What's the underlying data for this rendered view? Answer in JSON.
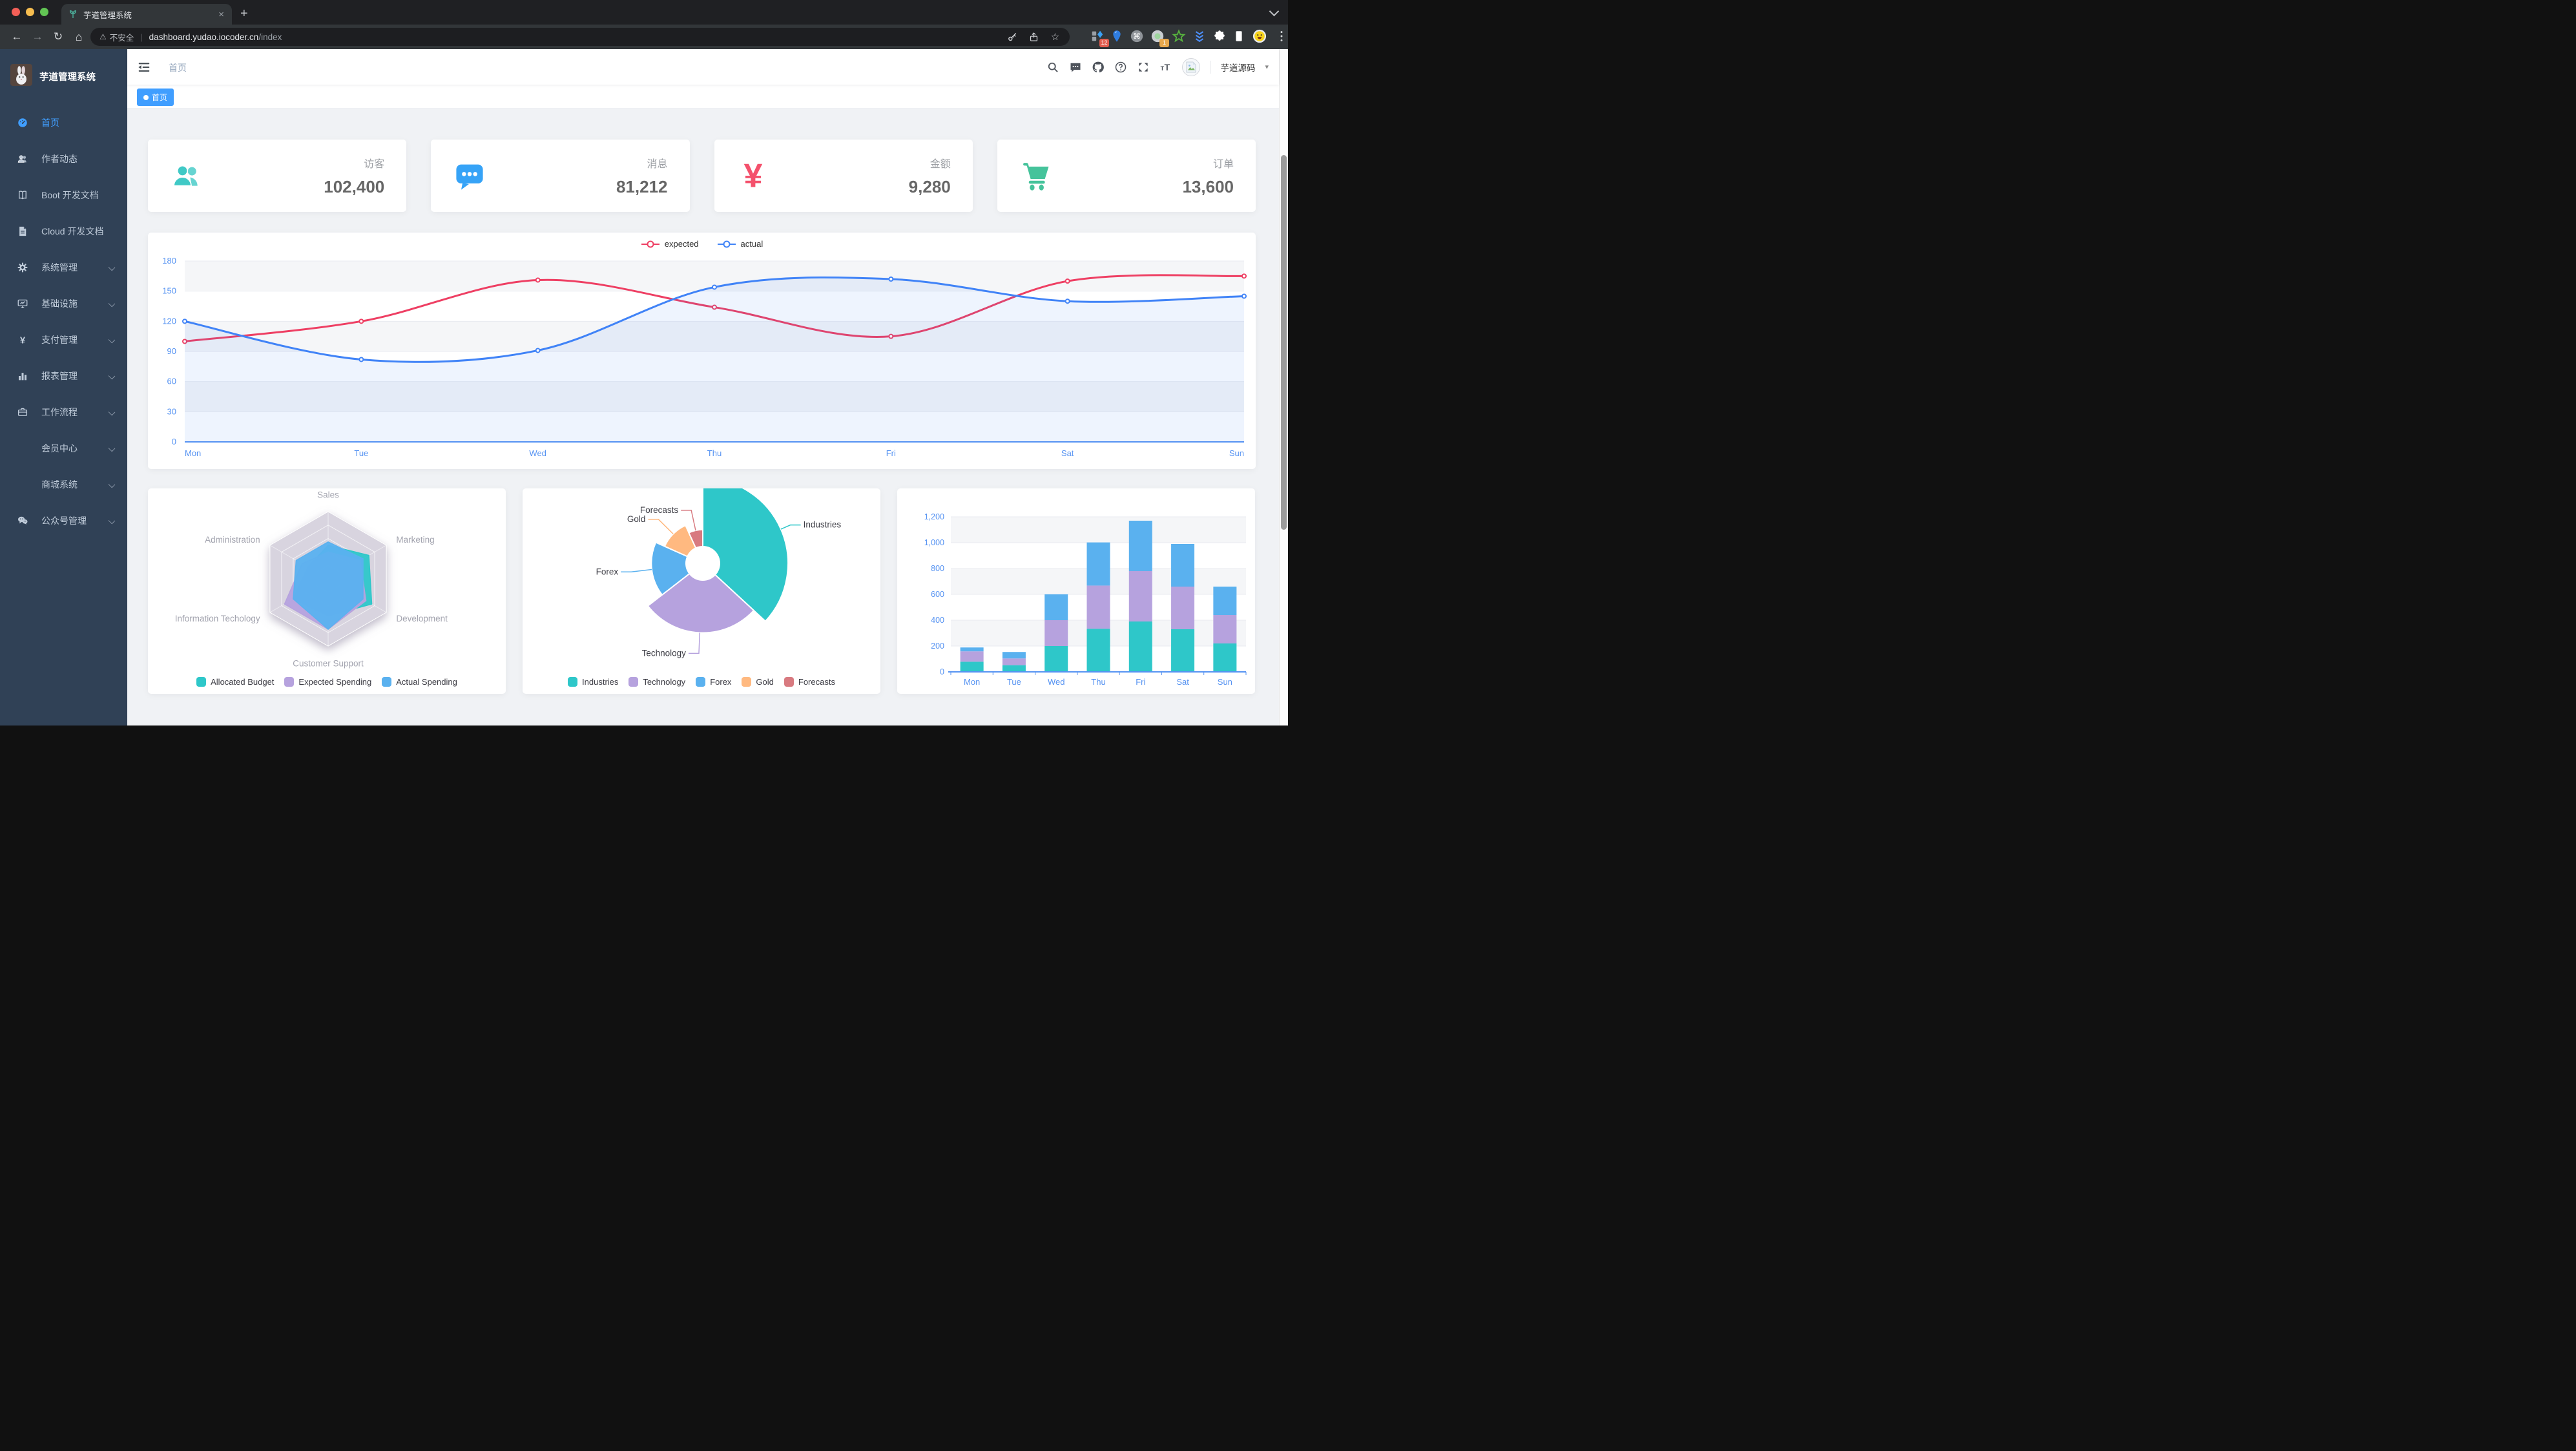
{
  "browser": {
    "tab": {
      "title": "芋道管理系统",
      "favicon": "plant-icon",
      "close_glyph": "×"
    },
    "new_tab_glyph": "+",
    "address": {
      "security_label": "不安全",
      "host": "dashboard.yudao.iocoder.cn",
      "path": "/index"
    },
    "toolbar_icons": [
      "back-icon",
      "forward-icon",
      "reload-icon",
      "home-icon"
    ],
    "urlbar_icons": [
      "key-icon",
      "share-icon",
      "star-icon"
    ],
    "extensions": [
      {
        "icon": "ext-grid-icon",
        "badge": "12",
        "badge_color": "#e05d4f"
      },
      {
        "icon": "ext-pin-icon"
      },
      {
        "icon": "ext-command-icon"
      },
      {
        "icon": "ext-circle-icon",
        "badge": "1",
        "badge_color": "#e8a84c"
      },
      {
        "icon": "ext-star-icon"
      },
      {
        "icon": "ext-chevrons-icon"
      },
      {
        "icon": "puzzle-icon"
      },
      {
        "icon": "reader-icon"
      },
      {
        "icon": "profile-smiley-icon"
      },
      {
        "icon": "kebab-icon"
      }
    ]
  },
  "sidebar": {
    "title": "芋道管理系统",
    "logo": "rabbit-avatar",
    "items": [
      {
        "id": "home",
        "icon": "dashboard-icon",
        "label": "首页",
        "active": true
      },
      {
        "id": "author-news",
        "icon": "people-icon",
        "label": "作者动态"
      },
      {
        "id": "boot-docs",
        "icon": "book-icon",
        "label": "Boot 开发文档"
      },
      {
        "id": "cloud-docs",
        "icon": "document-icon",
        "label": "Cloud 开发文档"
      },
      {
        "id": "system",
        "icon": "gear-icon",
        "label": "系统管理",
        "expandable": true
      },
      {
        "id": "infrastructure",
        "icon": "monitor-icon",
        "label": "基础设施",
        "expandable": true
      },
      {
        "id": "payment",
        "icon": "yen-icon",
        "label": "支付管理",
        "expandable": true
      },
      {
        "id": "report",
        "icon": "chart-bar-icon",
        "label": "报表管理",
        "expandable": true
      },
      {
        "id": "workflow",
        "icon": "briefcase-icon",
        "label": "工作流程",
        "expandable": true
      },
      {
        "id": "member-center",
        "icon": null,
        "label": "会员中心",
        "expandable": true
      },
      {
        "id": "mall-system",
        "icon": null,
        "label": "商城系统",
        "expandable": true
      },
      {
        "id": "official-account",
        "icon": "wechat-icon",
        "label": "公众号管理",
        "expandable": true
      }
    ]
  },
  "navbar": {
    "breadcrumb": "首页",
    "icons": [
      "search-icon",
      "message-icon",
      "github-icon",
      "question-icon",
      "fullscreen-icon",
      "font-size-icon"
    ],
    "avatar": "broken-image-icon",
    "user_name": "芋道源码",
    "caret": "▾"
  },
  "tags": [
    {
      "label": "首页",
      "active": true
    }
  ],
  "stats": [
    {
      "id": "visitors",
      "label": "访客",
      "value": "102,400",
      "icon": "people-icon",
      "color": "#40c9c6"
    },
    {
      "id": "messages",
      "label": "消息",
      "value": "81,212",
      "icon": "message-bubble-icon",
      "color": "#36a3f7"
    },
    {
      "id": "amount",
      "label": "金额",
      "value": "9,280",
      "icon": "money-icon",
      "color": "#f4516c"
    },
    {
      "id": "orders",
      "label": "订单",
      "value": "13,600",
      "icon": "cart-icon",
      "color": "#45c39b"
    }
  ],
  "colors": {
    "accent": "#409eff",
    "sidebar_bg": "#304156",
    "sidebar_text": "#bfcbd9",
    "axis_label": "#5693f2",
    "content_bg": "#f0f2f5"
  },
  "chart_data": [
    {
      "type": "line",
      "target": "line-svg",
      "x": [
        "Mon",
        "Tue",
        "Wed",
        "Thu",
        "Fri",
        "Sat",
        "Sun"
      ],
      "ylim": [
        0,
        180
      ],
      "ytick": 30,
      "grid": true,
      "legend_position": "top",
      "series": [
        {
          "name": "expected",
          "color": "#ee3f63",
          "values": [
            100,
            120,
            161,
            134,
            105,
            160,
            165
          ]
        },
        {
          "name": "actual",
          "color": "#4083f7",
          "values": [
            120,
            82,
            91,
            154,
            162,
            140,
            145
          ],
          "area": true
        }
      ]
    },
    {
      "type": "radar",
      "target": "radar-svg",
      "legend_position": "bottom",
      "indicators": [
        {
          "name": "Sales",
          "max": 10000
        },
        {
          "name": "Marketing",
          "max": 20000
        },
        {
          "name": "Development",
          "max": 20000
        },
        {
          "name": "Customer Support",
          "max": 20000
        },
        {
          "name": "Information Techology",
          "max": 20000
        },
        {
          "name": "Administration",
          "max": 20000
        }
      ],
      "series": [
        {
          "name": "Allocated Budget",
          "color": "#2ec7c9",
          "values": [
            5000,
            14000,
            15000,
            11000,
            12000,
            7000
          ]
        },
        {
          "name": "Expected Spending",
          "color": "#b6a2de",
          "values": [
            4000,
            11000,
            13000,
            15000,
            15000,
            9000
          ]
        },
        {
          "name": "Actual Spending",
          "color": "#5ab1ef",
          "values": [
            5500,
            12000,
            12000,
            15000,
            12000,
            11000
          ]
        }
      ]
    },
    {
      "type": "pie",
      "target": "pie-svg",
      "legend_position": "bottom",
      "rose": true,
      "slices": [
        {
          "name": "Industries",
          "value": 320,
          "color": "#2ec7c9"
        },
        {
          "name": "Technology",
          "value": 240,
          "color": "#b6a2de"
        },
        {
          "name": "Forex",
          "value": 149,
          "color": "#5ab1ef"
        },
        {
          "name": "Gold",
          "value": 100,
          "color": "#ffb980"
        },
        {
          "name": "Forecasts",
          "value": 59,
          "color": "#d87a80"
        }
      ]
    },
    {
      "type": "bar",
      "target": "bar-svg",
      "x": [
        "Mon",
        "Tue",
        "Wed",
        "Thu",
        "Fri",
        "Sat",
        "Sun"
      ],
      "ylim": [
        0,
        1200
      ],
      "ytick": 200,
      "stacked": true,
      "grid": true,
      "series": [
        {
          "name": "",
          "color": "#2ec7c9",
          "values": [
            79,
            52,
            200,
            334,
            390,
            330,
            220
          ]
        },
        {
          "name": "",
          "color": "#b6a2de",
          "values": [
            80,
            52,
            200,
            334,
            390,
            330,
            220
          ]
        },
        {
          "name": "",
          "color": "#5ab1ef",
          "values": [
            30,
            50,
            200,
            334,
            390,
            330,
            220
          ]
        }
      ]
    }
  ]
}
